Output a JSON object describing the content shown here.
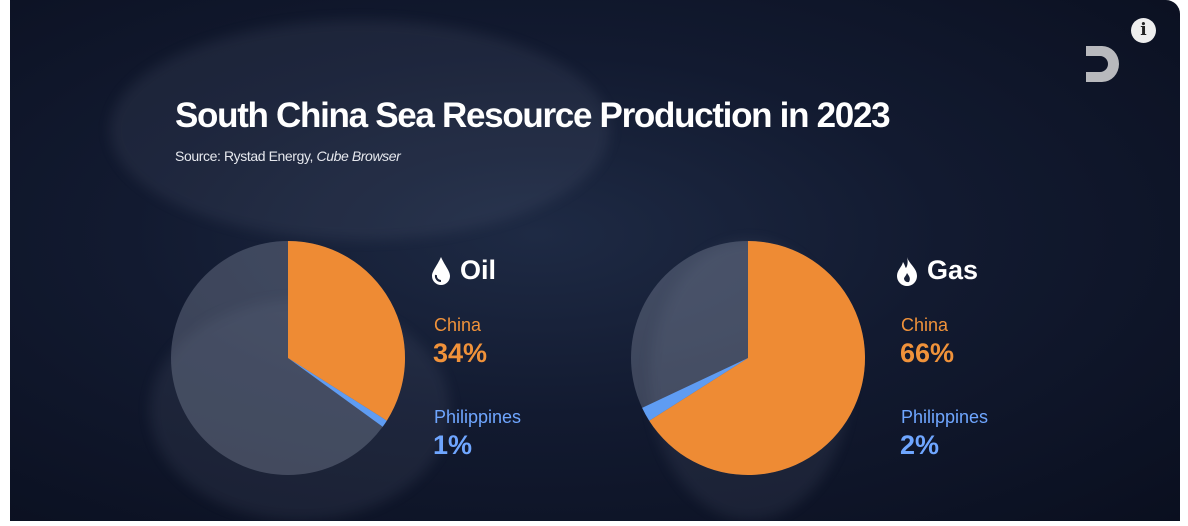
{
  "title": "South China Sea Resource Production in 2023",
  "source_prefix": "Source: Rystad Energy, ",
  "source_italic": "Cube Browser",
  "colors": {
    "china": "#ee8b34",
    "philippines": "#5f9cf2",
    "other": "rgba(140,150,170,0.35)"
  },
  "chart_data": [
    {
      "type": "pie",
      "title": "Oil",
      "icon": "oil-drop-icon",
      "slices": [
        {
          "name": "China",
          "value": 34
        },
        {
          "name": "Philippines",
          "value": 1
        }
      ],
      "labels": {
        "china": "China",
        "china_value": "34%",
        "philippines": "Philippines",
        "philippines_value": "1%"
      }
    },
    {
      "type": "pie",
      "title": "Gas",
      "icon": "flame-icon",
      "slices": [
        {
          "name": "China",
          "value": 66
        },
        {
          "name": "Philippines",
          "value": 2
        }
      ],
      "labels": {
        "china": "China",
        "china_value": "66%",
        "philippines": "Philippines",
        "philippines_value": "2%"
      }
    }
  ],
  "info_label": "i"
}
